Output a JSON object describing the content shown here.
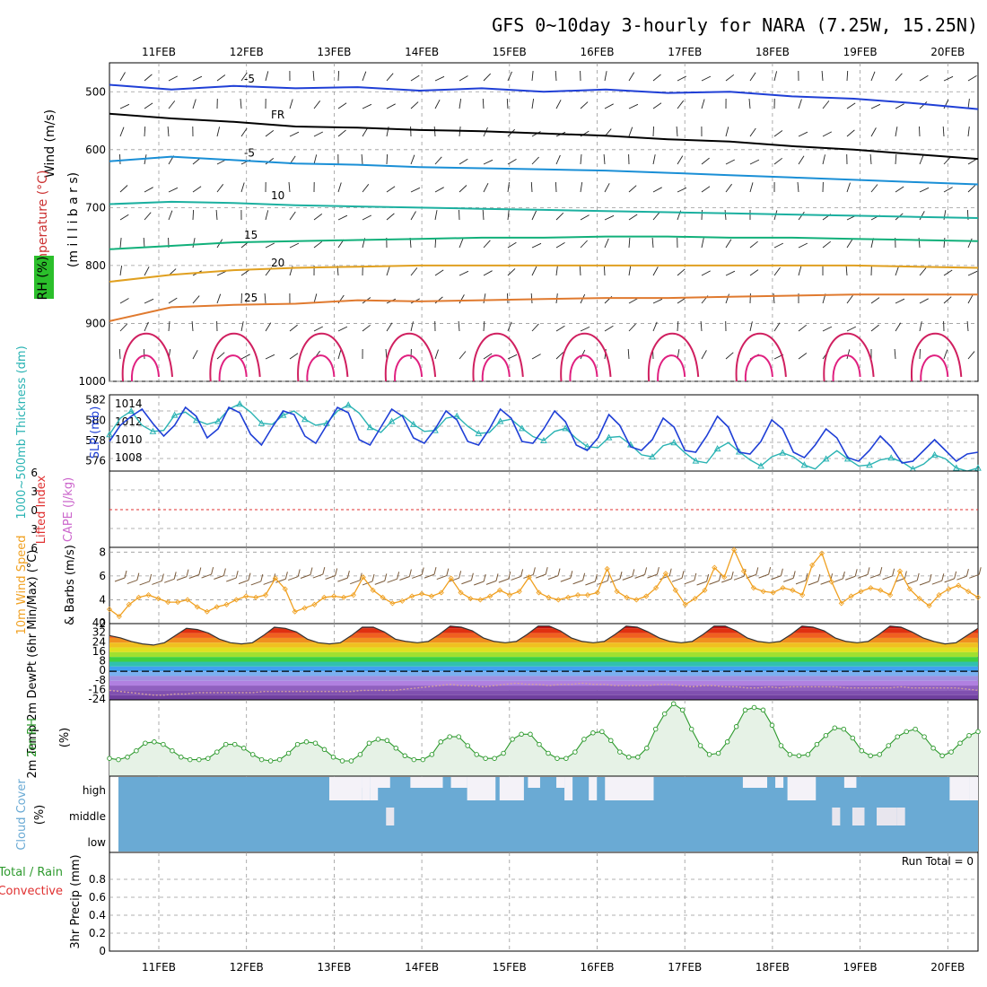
{
  "title": "GFS 0~10day 3-hourly for NARA (7.25W, 15.25N)",
  "run_total_label": "Run Total = 0",
  "colors": {
    "temperature": "#e07a2f",
    "rh": "#4caf50",
    "slp": "#1f3fd6",
    "thickness": "#2ab3b3",
    "lifted_index": "#e03030",
    "cape": "#cc66cc",
    "wind10m_speed": "#f0a020",
    "wind10m_barbs": "#7a5a3a",
    "rh2m": "#2e9a2e",
    "cloud": "#6aaad4",
    "precip_total": "#2e9a2e",
    "precip_conv": "#e03030"
  },
  "chart_data": [
    {
      "type": "line",
      "name": "upper-air",
      "x_ticks": [
        "11FEB",
        "12FEB",
        "13FEB",
        "14FEB",
        "15FEB",
        "16FEB",
        "17FEB",
        "18FEB",
        "19FEB",
        "20FEB"
      ],
      "y_ticks": [
        "500",
        "600",
        "700",
        "800",
        "900",
        "1000"
      ],
      "ylabel_wind": "Wind (m/s)",
      "ylabel_temp": "Temperature (°C)",
      "ylabel_rh": "RH (%)",
      "ylabel_mb": "(m i l l i b a r s)",
      "ylim": [
        450,
        1000
      ],
      "isotherms": [
        {
          "label": "-5",
          "color": "#1f3fd6",
          "levels": [
            488,
            496,
            490,
            494,
            492,
            498,
            494,
            500,
            496,
            502,
            500,
            508,
            512,
            520,
            530
          ]
        },
        {
          "label": "FR",
          "color": "#000000",
          "levels": [
            538,
            546,
            552,
            560,
            562,
            566,
            568,
            572,
            576,
            582,
            586,
            594,
            600,
            608,
            616
          ]
        },
        {
          "label": "-5",
          "color": "#1a8fd6",
          "levels": [
            620,
            612,
            618,
            624,
            626,
            630,
            632,
            634,
            636,
            640,
            644,
            648,
            652,
            656,
            660
          ]
        },
        {
          "label": "10",
          "color": "#1cb0a0",
          "levels": [
            694,
            690,
            692,
            696,
            698,
            700,
            702,
            704,
            706,
            708,
            710,
            712,
            714,
            716,
            718
          ]
        },
        {
          "label": "15",
          "color": "#11b07a",
          "levels": [
            772,
            766,
            760,
            758,
            756,
            754,
            752,
            752,
            750,
            750,
            752,
            752,
            754,
            756,
            758
          ]
        },
        {
          "label": "20",
          "color": "#e0a020",
          "levels": [
            828,
            816,
            808,
            804,
            802,
            800,
            800,
            800,
            800,
            800,
            800,
            800,
            800,
            802,
            804
          ]
        },
        {
          "label": "25",
          "color": "#e07a2f",
          "levels": [
            896,
            872,
            868,
            866,
            860,
            862,
            860,
            858,
            856,
            856,
            854,
            852,
            850,
            850,
            850
          ]
        }
      ],
      "isotherm_labels": [
        "-5",
        "FR",
        "-5",
        "15",
        "10",
        "10",
        "15",
        "15",
        "20",
        "20",
        "25"
      ]
    },
    {
      "type": "line",
      "name": "slp-thickness",
      "yticks_left": [
        "576",
        "578",
        "580",
        "582"
      ],
      "yticks_right": [
        "1008",
        "1010",
        "1012",
        "1014"
      ],
      "ylabel_left": "1000~500mb Thickness (dm)",
      "ylabel_right": "SLP (mb)",
      "thickness_ylim": [
        575,
        582.5
      ],
      "slp_ylim": [
        1006.5,
        1015
      ],
      "thickness": [
        578.6,
        580.2,
        580.9,
        579.5,
        578.9,
        579.0,
        580.5,
        580.8,
        580.0,
        579.6,
        579.9,
        581.1,
        581.6,
        580.8,
        579.7,
        579.6,
        580.5,
        580.9,
        580.1,
        579.5,
        579.7,
        580.9,
        581.5,
        580.7,
        579.3,
        578.8,
        579.9,
        580.5,
        579.6,
        578.9,
        579.0,
        580.2,
        580.4,
        579.4,
        578.7,
        578.8,
        579.9,
        580.1,
        579.2,
        578.4,
        578.0,
        578.9,
        579.2,
        578.2,
        577.4,
        577.3,
        578.3,
        578.4,
        577.6,
        576.6,
        576.4,
        577.5,
        577.8,
        576.8,
        576.0,
        575.8,
        577.2,
        577.8,
        576.9,
        576.1,
        575.5,
        576.4,
        576.8,
        576.4,
        575.6,
        575.2,
        576.2,
        577.0,
        576.2,
        575.5,
        575.6,
        576.1,
        576.3,
        575.9,
        575.2,
        575.7,
        576.6,
        576.2,
        575.3,
        575.0,
        575.3
      ],
      "slp": [
        1009.8,
        1011.6,
        1012.6,
        1013.4,
        1011.8,
        1010.4,
        1011.6,
        1013.6,
        1012.6,
        1010.2,
        1011.2,
        1013.6,
        1013.0,
        1010.6,
        1009.4,
        1011.4,
        1013.2,
        1012.8,
        1010.4,
        1009.6,
        1011.6,
        1013.6,
        1013.0,
        1010.0,
        1009.4,
        1011.4,
        1013.4,
        1012.6,
        1010.2,
        1009.6,
        1011.2,
        1013.2,
        1012.2,
        1009.8,
        1009.4,
        1011.2,
        1013.4,
        1012.4,
        1009.8,
        1009.6,
        1011.2,
        1013.2,
        1012.0,
        1009.4,
        1008.8,
        1010.2,
        1012.8,
        1011.6,
        1009.2,
        1008.8,
        1010.0,
        1012.4,
        1011.4,
        1008.8,
        1008.6,
        1010.4,
        1012.6,
        1011.4,
        1008.6,
        1008.4,
        1009.8,
        1012.2,
        1011.2,
        1008.6,
        1008.0,
        1009.4,
        1011.2,
        1010.2,
        1008.0,
        1007.6,
        1008.8,
        1010.4,
        1009.2,
        1007.4,
        1007.6,
        1008.8,
        1010.0,
        1008.8,
        1007.6,
        1008.4,
        1008.6
      ]
    },
    {
      "type": "line",
      "name": "cape-li",
      "yticks": [
        "6",
        "3",
        "0",
        "3",
        "6"
      ],
      "ylabel_left": "Lifted Index",
      "ylabel_right": "CAPE (J/kg)",
      "ylim": [
        -6,
        6
      ],
      "lifted_index_zero": 0
    },
    {
      "type": "line",
      "name": "wind10m",
      "yticks": [
        "2",
        "4",
        "6",
        "8"
      ],
      "ylabel_left": "10m Wind Speed",
      "ylabel_right": "& Barbs (m/s)",
      "ylim": [
        2,
        8.4
      ],
      "speed": [
        3.2,
        2.6,
        3.6,
        4.2,
        4.4,
        4.1,
        3.8,
        3.8,
        4.0,
        3.4,
        3.0,
        3.4,
        3.6,
        4.0,
        4.3,
        4.2,
        4.4,
        5.8,
        4.9,
        3.0,
        3.3,
        3.6,
        4.2,
        4.3,
        4.2,
        4.4,
        5.9,
        4.8,
        4.2,
        3.7,
        3.9,
        4.3,
        4.5,
        4.3,
        4.6,
        5.8,
        4.6,
        4.1,
        4.0,
        4.3,
        4.8,
        4.4,
        4.7,
        5.9,
        4.6,
        4.2,
        4.0,
        4.2,
        4.4,
        4.4,
        4.6,
        6.6,
        4.7,
        4.2,
        4.0,
        4.3,
        5.0,
        6.2,
        4.8,
        3.6,
        4.1,
        4.8,
        6.7,
        5.9,
        8.2,
        6.4,
        5.0,
        4.7,
        4.6,
        5.0,
        4.8,
        4.4,
        6.9,
        7.9,
        5.5,
        3.7,
        4.3,
        4.7,
        5.0,
        4.8,
        4.4,
        6.4,
        4.9,
        4.1,
        3.5,
        4.4,
        4.9,
        5.2,
        4.7,
        4.2
      ]
    },
    {
      "type": "area",
      "name": "temp-dewpt",
      "yticks": [
        "40",
        "32",
        "24",
        "16",
        "8",
        "0",
        "-8",
        "-16",
        "-24"
      ],
      "ylabel": "2m Temp 2m DewPt (6hr Min/Max) (°C)",
      "ylim": [
        -24,
        40
      ],
      "temperature": [
        30,
        28,
        25,
        23,
        22,
        24,
        30,
        36,
        35,
        32,
        27,
        24,
        23,
        24,
        30,
        37,
        36,
        33,
        27,
        24,
        23,
        24,
        30,
        37,
        37,
        33,
        27,
        25,
        24,
        25,
        31,
        38,
        37,
        34,
        28,
        25,
        24,
        25,
        31,
        38,
        38,
        34,
        28,
        25,
        24,
        25,
        31,
        38,
        37,
        33,
        28,
        25,
        24,
        25,
        31,
        38,
        38,
        34,
        28,
        25,
        24,
        25,
        31,
        38,
        37,
        34,
        28,
        25,
        24,
        25,
        31,
        38,
        37,
        33,
        28,
        25,
        23,
        24,
        30,
        36
      ],
      "dewpoint": [
        -16,
        -17,
        -18,
        -19,
        -20,
        -20,
        -19,
        -19,
        -18,
        -18,
        -18,
        -18,
        -18,
        -18,
        -17,
        -17,
        -17,
        -17,
        -17,
        -17,
        -17,
        -17,
        -17,
        -16,
        -16,
        -16,
        -16,
        -15,
        -14,
        -13,
        -12,
        -11,
        -12,
        -12,
        -13,
        -12,
        -11,
        -10,
        -11,
        -11,
        -12,
        -11,
        -11,
        -10,
        -11,
        -11,
        -12,
        -12,
        -12,
        -12,
        -11,
        -11,
        -12,
        -13,
        -12,
        -12,
        -13,
        -13,
        -14,
        -14,
        -13,
        -14,
        -13,
        -13,
        -13,
        -13,
        -13,
        -14,
        -14,
        -14,
        -14,
        -14,
        -13,
        -14,
        -14,
        -14,
        -14,
        -14,
        -15,
        -16
      ]
    },
    {
      "type": "area",
      "name": "rh2m",
      "ylabel": "2m RH",
      "ylabel_units": "(%)",
      "ylim": [
        0,
        60
      ],
      "values": [
        14,
        13,
        15,
        20,
        26,
        27,
        25,
        20,
        15,
        13,
        13,
        14,
        19,
        25,
        25,
        22,
        17,
        13,
        12,
        13,
        18,
        25,
        27,
        26,
        21,
        15,
        12,
        12,
        17,
        26,
        29,
        28,
        22,
        16,
        13,
        13,
        17,
        27,
        31,
        31,
        24,
        17,
        14,
        14,
        18,
        29,
        33,
        33,
        25,
        18,
        14,
        14,
        19,
        29,
        34,
        35,
        28,
        19,
        15,
        15,
        22,
        37,
        49,
        57,
        52,
        37,
        24,
        17,
        18,
        27,
        39,
        52,
        54,
        52,
        40,
        24,
        17,
        16,
        17,
        25,
        32,
        38,
        37,
        30,
        20,
        16,
        17,
        24,
        31,
        35,
        37,
        31,
        22,
        16,
        19,
        26,
        32,
        35
      ]
    },
    {
      "type": "heatmap",
      "name": "cloud-cover",
      "ylabel": "Cloud Cover",
      "ylabel_units": "(%)",
      "rows": [
        "high",
        "middle",
        "low"
      ],
      "high_white_spans": [
        [
          26.0,
          30.0
        ],
        [
          30.0,
          31.0
        ],
        [
          31.0,
          32.0
        ],
        [
          43.0,
          46.5
        ],
        [
          47.0,
          50.0
        ],
        [
          55.0,
          56.0
        ],
        [
          58.0,
          59.0
        ],
        [
          60.0,
          66.0
        ],
        [
          82.5,
          86.0
        ],
        [
          102.5,
          105.0
        ],
        [
          105.0,
          106.0
        ]
      ],
      "high_partial_spans": [
        [
          30.0,
          31.0
        ],
        [
          31.5,
          33.5
        ],
        [
          36.0,
          40.0
        ],
        [
          41.0,
          43.0
        ],
        [
          50.5,
          52.0
        ],
        [
          54.0,
          55.0
        ],
        [
          77.0,
          80.0
        ],
        [
          81.0,
          82.0
        ],
        [
          89.5,
          91.0
        ]
      ],
      "middle_white_spans": [
        [
          33.0,
          34.0
        ],
        [
          88.0,
          89.0
        ],
        [
          90.5,
          92.0
        ],
        [
          93.5,
          96.0
        ],
        [
          96.0,
          97.0
        ]
      ]
    },
    {
      "type": "bar",
      "name": "precip",
      "yticks": [
        "0",
        "0.2",
        "0.4",
        "0.6",
        "0.8"
      ],
      "ylabel_total": "Total / Rain",
      "ylabel_conv": "Convective",
      "ylabel_units": "3hr Precip (mm)",
      "ylim": [
        0,
        1
      ],
      "values": []
    }
  ]
}
